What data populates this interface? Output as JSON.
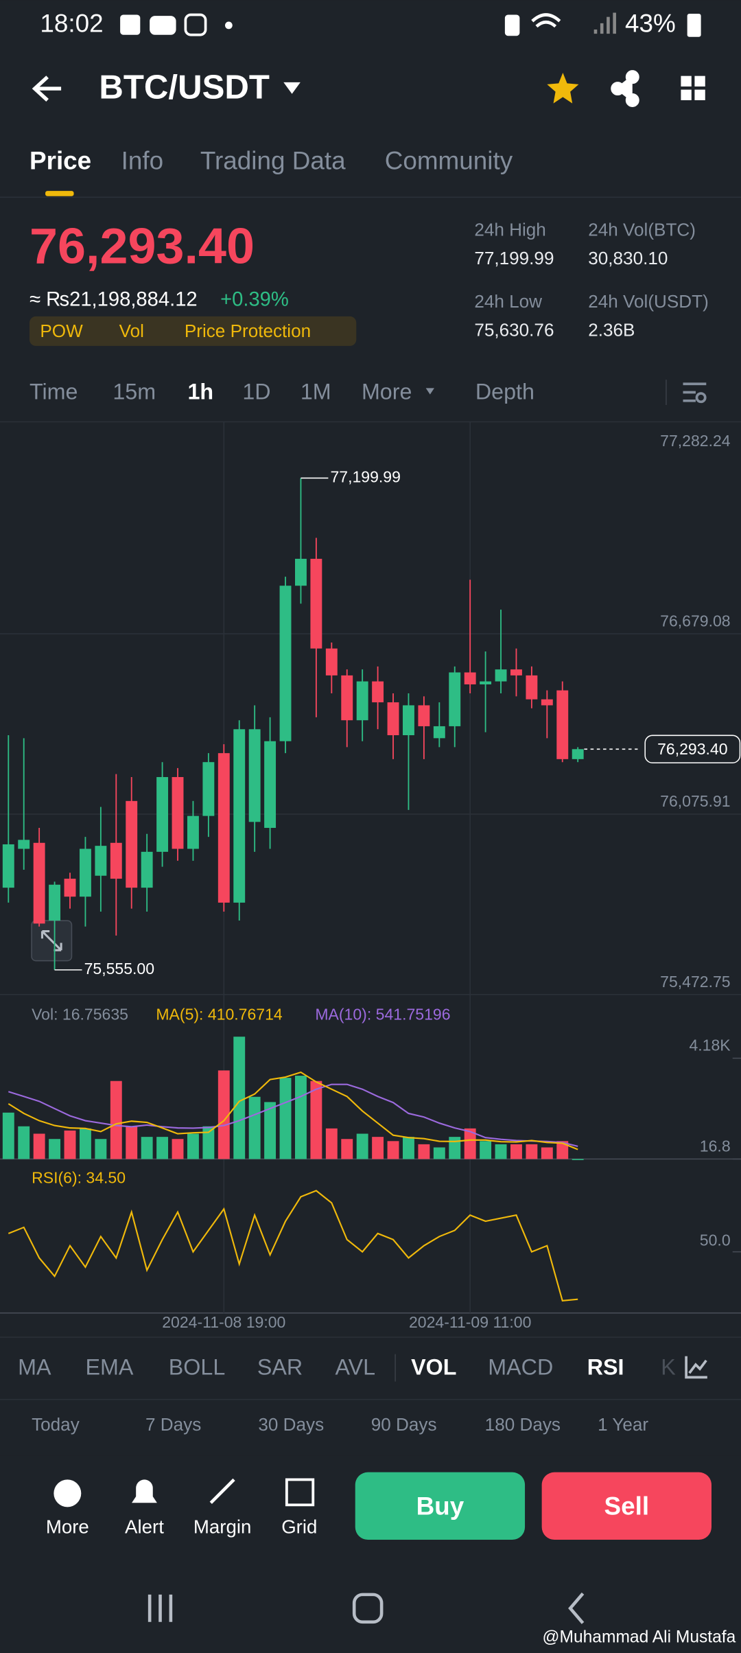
{
  "status_bar": {
    "time": "18:02",
    "battery": "43%"
  },
  "header": {
    "pair": "BTC/USDT"
  },
  "tabs": [
    "Price",
    "Info",
    "Trading Data",
    "Community"
  ],
  "ticker": {
    "price": "76,293.40",
    "fiat": "≈ ₨21,198,884.12",
    "change": "+0.39%",
    "tags": [
      "POW",
      "Vol",
      "Price Protection"
    ],
    "stats": [
      {
        "label": "24h High",
        "value": "77,199.99"
      },
      {
        "label": "24h Vol(BTC)",
        "value": "30,830.10"
      },
      {
        "label": "24h Low",
        "value": "75,630.76"
      },
      {
        "label": "24h Vol(USDT)",
        "value": "2.36B"
      }
    ]
  },
  "intervals": [
    "Time",
    "15m",
    "1h",
    "1D",
    "1M",
    "More",
    "Depth"
  ],
  "chart_data": {
    "type": "candlestick",
    "x": [
      null,
      null,
      null,
      null,
      null,
      null,
      null,
      null,
      null,
      null,
      null,
      null,
      null,
      null,
      "2024-11-08 19:00",
      null,
      null,
      null,
      null,
      null,
      null,
      null,
      null,
      null,
      null,
      null,
      null,
      null,
      null,
      null,
      "2024-11-09 11:00",
      null,
      null,
      null,
      null,
      null,
      null,
      null
    ],
    "open": [
      75830,
      75960,
      75980,
      75720,
      75860,
      75800,
      75870,
      75980,
      76120,
      75830,
      75950,
      76200,
      75960,
      76070,
      76280,
      75780,
      76050,
      76030,
      76320,
      76840,
      76930,
      76630,
      76540,
      76390,
      76520,
      76450,
      76340,
      76440,
      76330,
      76370,
      76550,
      76510,
      76520,
      76560,
      76540,
      76460,
      76490,
      76260
    ],
    "high": [
      76340,
      76330,
      76030,
      75850,
      75880,
      76000,
      76100,
      76210,
      76200,
      76010,
      76250,
      76230,
      76120,
      76280,
      76310,
      76390,
      76440,
      76400,
      76870,
      77199.99,
      77000,
      76650,
      76560,
      76560,
      76570,
      76480,
      76480,
      76470,
      76450,
      76570,
      76860,
      76620,
      76760,
      76630,
      76570,
      76490,
      76520,
      76300
    ],
    "low": [
      75780,
      75890,
      75700,
      75555,
      75760,
      75700,
      75750,
      75670,
      75760,
      75750,
      75900,
      75920,
      75920,
      76000,
      75750,
      75720,
      75950,
      75960,
      76280,
      76780,
      76400,
      76480,
      76300,
      76320,
      76360,
      76260,
      76090,
      76260,
      76300,
      76300,
      76480,
      76350,
      76480,
      76470,
      76430,
      76330,
      76250,
      76250
    ],
    "close": [
      75975,
      75990,
      75710,
      75840,
      75800,
      75960,
      75970,
      75860,
      75830,
      75950,
      76200,
      75960,
      76070,
      76250,
      75780,
      76360,
      76360,
      76320,
      76840,
      76930,
      76630,
      76540,
      76390,
      76520,
      76450,
      76340,
      76440,
      76370,
      76370,
      76550,
      76510,
      76520,
      76560,
      76540,
      76460,
      76440,
      76260,
      76293.4
    ],
    "ylim": [
      75472.75,
      77282.24
    ],
    "yticks": [
      {
        "value": 77282.24,
        "label": "77,282.24"
      },
      {
        "value": 76679.08,
        "label": "76,679.08"
      },
      {
        "value": 76075.91,
        "label": "76,075.91"
      },
      {
        "value": 75472.75,
        "label": "75,472.75"
      }
    ],
    "high_label": {
      "value": 77199.99,
      "label": "77,199.99"
    },
    "low_label": {
      "value": 75555,
      "label": "75,555.00"
    },
    "last_label": {
      "value": 76293.4,
      "label": "76,293.40"
    },
    "up_color": "#2ebd85",
    "down_color": "#f6465d"
  },
  "volume": {
    "legend": [
      "Vol: 16.75635",
      "MA(5): 410.76714",
      "MA(10): 541.75196"
    ],
    "values": [
      1933,
      1367,
      1062,
      844,
      1193,
      1280,
      844,
      3239,
      1367,
      931,
      931,
      844,
      1062,
      1367,
      3675,
      5069,
      2586,
      2369,
      3370,
      3457,
      3239,
      1280,
      844,
      1062,
      931,
      757,
      931,
      626,
      496,
      931,
      1280,
      757,
      626,
      626,
      626,
      496,
      757,
      16.75635
    ],
    "ma5": [
      2300,
      1900,
      1600,
      1400,
      1300,
      1280,
      1150,
      1470,
      1580,
      1530,
      1300,
      1060,
      1100,
      1120,
      1600,
      2400,
      2700,
      3300,
      3400,
      3600,
      3200,
      2900,
      2600,
      2000,
      1500,
      1000,
      900,
      860,
      750,
      740,
      800,
      800,
      730,
      720,
      780,
      700,
      670,
      410.76714
    ],
    "ma10": [
      2800,
      2600,
      2400,
      2100,
      1800,
      1600,
      1500,
      1400,
      1350,
      1420,
      1350,
      1300,
      1290,
      1320,
      1400,
      1600,
      1850,
      2100,
      2350,
      2600,
      2900,
      3100,
      3100,
      2900,
      2600,
      2350,
      1900,
      1750,
      1500,
      1300,
      1150,
      900,
      830,
      780,
      760,
      740,
      700,
      541.75196
    ],
    "ma5_color": "#f0b90b",
    "ma10_color": "#9c6ade",
    "ylim": [
      16.8,
      5200
    ],
    "yticks": [
      {
        "value": 4180,
        "label": "4.18K"
      },
      16.8
    ]
  },
  "rsi": {
    "legend": "RSI(6): 34.50",
    "values": [
      56,
      58,
      48,
      42,
      52,
      45,
      55,
      48,
      63,
      44,
      54,
      63,
      50,
      57,
      64,
      46,
      62,
      49,
      60,
      68,
      70,
      66,
      54,
      50,
      56,
      54,
      48,
      52,
      55,
      57,
      62,
      60,
      61,
      62,
      50,
      52,
      34,
      34.5
    ],
    "color": "#f0b90b",
    "ylim": [
      30,
      80
    ],
    "yticks": [
      {
        "value": 50,
        "label": "50.0"
      }
    ]
  },
  "indicators": [
    "MA",
    "EMA",
    "BOLL",
    "SAR",
    "AVL",
    "VOL",
    "MACD",
    "RSI",
    "K"
  ],
  "performance": [
    "Today",
    "7 Days",
    "30 Days",
    "90 Days",
    "180 Days",
    "1 Year"
  ],
  "actions": [
    "More",
    "Alert",
    "Margin",
    "Grid"
  ],
  "buy": "Buy",
  "sell": "Sell",
  "watermark": "@Muhammad Ali Mustafa"
}
